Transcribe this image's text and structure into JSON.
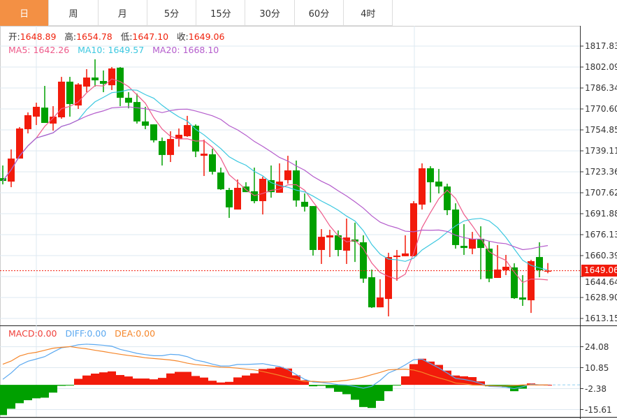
{
  "tabs": [
    "日",
    "周",
    "月",
    "5分",
    "15分",
    "30分",
    "60分",
    "4时"
  ],
  "active_tab": 0,
  "ohlc_info": {
    "open_label": "开:",
    "open": "1648.89",
    "high_label": "高:",
    "high": "1654.78",
    "low_label": "低:",
    "low": "1647.10",
    "close_label": "收:",
    "close": "1649.06"
  },
  "ma_info": {
    "ma5": "MA5: 1642.26",
    "ma10": "MA10: 1649.57",
    "ma20": "MA20: 1668.10"
  },
  "macd_info": {
    "macd": "MACD:0.00",
    "diff": "DIFF:0.00",
    "dea": "DEA:0.00"
  },
  "current_price": "1649.06",
  "colors": {
    "up": "#f21b0b",
    "down": "#00a000",
    "ma5": "#ee5a8a",
    "ma10": "#3cc8e0",
    "ma20": "#b45ccc",
    "diff": "#5aa8f0",
    "dea": "#f5862a",
    "active_tab": "#f39044"
  },
  "chart_data": {
    "type": "candlestick",
    "price_ticks": [
      "1817.83",
      "1802.09",
      "1786.34",
      "1770.60",
      "1754.85",
      "1739.11",
      "1723.36",
      "1707.62",
      "1691.88",
      "1676.13",
      "1660.39",
      "1644.64",
      "1628.90",
      "1613.15"
    ],
    "price_range": [
      1613.15,
      1817.83
    ],
    "macd_ticks": [
      "24.08",
      "10.85",
      "-2.38",
      "-15.61"
    ],
    "macd_range": [
      -15.61,
      24.08
    ],
    "candles": [
      [
        1718.6,
        1728.1,
        1713.9,
        1716.5
      ],
      [
        1716.0,
        1740.2,
        1711.8,
        1733.3
      ],
      [
        1733.3,
        1757.0,
        1733.3,
        1755.9
      ],
      [
        1755.4,
        1768.0,
        1752.2,
        1765.9
      ],
      [
        1764.8,
        1775.3,
        1758.5,
        1772.2
      ],
      [
        1771.6,
        1787.9,
        1760.1,
        1760.1
      ],
      [
        1759.6,
        1772.7,
        1754.3,
        1764.8
      ],
      [
        1764.3,
        1794.7,
        1763.2,
        1791.1
      ],
      [
        1791.1,
        1794.7,
        1764.8,
        1774.3
      ],
      [
        1773.2,
        1790.0,
        1770.6,
        1789.0
      ],
      [
        1787.4,
        1800.5,
        1783.2,
        1794.2
      ],
      [
        1794.2,
        1807.9,
        1787.4,
        1792.1
      ],
      [
        1791.6,
        1799.5,
        1783.2,
        1789.5
      ],
      [
        1788.4,
        1802.1,
        1784.8,
        1801.0
      ],
      [
        1801.6,
        1802.1,
        1772.7,
        1779.0
      ],
      [
        1779.0,
        1783.2,
        1771.1,
        1775.3
      ],
      [
        1775.8,
        1782.1,
        1759.6,
        1761.2
      ],
      [
        1761.2,
        1772.2,
        1755.4,
        1758.0
      ],
      [
        1759.0,
        1759.0,
        1745.4,
        1747.0
      ],
      [
        1746.5,
        1749.1,
        1728.1,
        1736.0
      ],
      [
        1736.0,
        1753.8,
        1730.7,
        1748.0
      ],
      [
        1748.0,
        1755.9,
        1742.3,
        1751.2
      ],
      [
        1750.1,
        1765.4,
        1749.6,
        1758.5
      ],
      [
        1758.0,
        1759.0,
        1734.4,
        1738.6
      ],
      [
        1735.4,
        1747.5,
        1720.2,
        1737.0
      ],
      [
        1736.5,
        1740.7,
        1721.3,
        1723.4
      ],
      [
        1722.8,
        1726.5,
        1709.7,
        1710.2
      ],
      [
        1709.7,
        1711.3,
        1688.7,
        1696.6
      ],
      [
        1695.0,
        1717.6,
        1695.0,
        1711.3
      ],
      [
        1712.3,
        1715.5,
        1708.1,
        1708.1
      ],
      [
        1708.7,
        1726.5,
        1699.7,
        1701.3
      ],
      [
        1701.3,
        1719.7,
        1691.3,
        1718.1
      ],
      [
        1717.1,
        1728.1,
        1703.9,
        1708.1
      ],
      [
        1707.6,
        1729.7,
        1707.6,
        1716.0
      ],
      [
        1717.1,
        1735.4,
        1714.4,
        1724.4
      ],
      [
        1724.4,
        1731.8,
        1697.1,
        1701.8
      ],
      [
        1700.8,
        1707.1,
        1693.5,
        1697.1
      ],
      [
        1697.6,
        1697.6,
        1660.4,
        1664.6
      ],
      [
        1664.6,
        1680.3,
        1654.1,
        1674.5
      ],
      [
        1674.0,
        1679.8,
        1659.3,
        1675.6
      ],
      [
        1675.6,
        1679.3,
        1659.9,
        1664.6
      ],
      [
        1664.1,
        1688.2,
        1654.1,
        1674.0
      ],
      [
        1672.5,
        1685.1,
        1655.6,
        1670.9
      ],
      [
        1670.4,
        1675.6,
        1639.9,
        1643.1
      ],
      [
        1644.1,
        1649.9,
        1621.0,
        1621.5
      ],
      [
        1621.5,
        1642.6,
        1621.5,
        1628.9
      ],
      [
        1627.8,
        1662.5,
        1614.7,
        1659.3
      ],
      [
        1659.3,
        1664.6,
        1641.5,
        1660.4
      ],
      [
        1659.9,
        1675.6,
        1659.9,
        1662.0
      ],
      [
        1659.9,
        1701.3,
        1659.9,
        1699.7
      ],
      [
        1698.7,
        1729.7,
        1695.0,
        1726.0
      ],
      [
        1726.0,
        1727.6,
        1700.3,
        1715.5
      ],
      [
        1716.0,
        1725.5,
        1707.1,
        1712.3
      ],
      [
        1712.3,
        1714.4,
        1690.8,
        1694.5
      ],
      [
        1695.0,
        1699.7,
        1665.6,
        1668.3
      ],
      [
        1667.7,
        1684.0,
        1660.9,
        1666.1
      ],
      [
        1665.6,
        1678.2,
        1661.4,
        1673.0
      ],
      [
        1673.0,
        1682.4,
        1642.6,
        1666.1
      ],
      [
        1665.6,
        1670.9,
        1640.4,
        1643.1
      ],
      [
        1643.6,
        1668.3,
        1643.6,
        1649.9
      ],
      [
        1649.4,
        1660.9,
        1645.7,
        1652.0
      ],
      [
        1651.5,
        1654.6,
        1627.8,
        1628.4
      ],
      [
        1628.9,
        1645.7,
        1622.6,
        1627.3
      ],
      [
        1626.8,
        1657.2,
        1617.3,
        1656.2
      ],
      [
        1659.3,
        1670.4,
        1644.1,
        1649.4
      ],
      [
        1648.89,
        1654.78,
        1647.1,
        1649.06
      ]
    ],
    "macd_hist": [
      -19.1,
      -15.1,
      -11.6,
      -9.7,
      -8.5,
      -8.1,
      -4.9,
      -0.6,
      -0.1,
      3.8,
      5.9,
      7.1,
      7.9,
      8.5,
      6.2,
      5.3,
      4.0,
      4.0,
      3.5,
      4.4,
      7.2,
      8.2,
      8.2,
      5.6,
      4.6,
      2.6,
      1.5,
      1.9,
      4.7,
      5.9,
      7.3,
      10.0,
      10.3,
      11.2,
      10.3,
      6.0,
      2.9,
      -0.9,
      -0.6,
      -2.0,
      -4.4,
      -5.9,
      -9.4,
      -14.0,
      -14.6,
      -10.1,
      -4.0,
      -0.1,
      5.4,
      13.1,
      16.5,
      14.7,
      12.6,
      9.0,
      5.9,
      5.4,
      4.9,
      2.2,
      -0.9,
      -0.9,
      -1.6,
      -4.0,
      -2.4,
      0.9,
      0.1,
      0.0
    ],
    "diff": [
      3.5,
      7.5,
      12.4,
      14.9,
      16.3,
      17.8,
      20.7,
      23.4,
      24.1,
      25.3,
      25.7,
      25.4,
      25.0,
      24.4,
      22.4,
      21.2,
      19.9,
      19.1,
      18.4,
      18.4,
      19.3,
      19.0,
      17.8,
      15.6,
      14.6,
      13.1,
      11.9,
      11.9,
      12.9,
      12.9,
      13.1,
      13.4,
      12.4,
      11.6,
      9.7,
      6.5,
      3.5,
      1.8,
      1.5,
      0.9,
      0.1,
      -0.1,
      -1.0,
      -2.1,
      -0.9,
      2.8,
      7.5,
      9.7,
      12.6,
      15.9,
      16.2,
      13.4,
      10.7,
      7.5,
      4.1,
      3.4,
      2.4,
      0.9,
      -1.0,
      -1.2,
      -1.5,
      -2.4,
      -1.2,
      0.4,
      0.0,
      0.0
    ]
  }
}
